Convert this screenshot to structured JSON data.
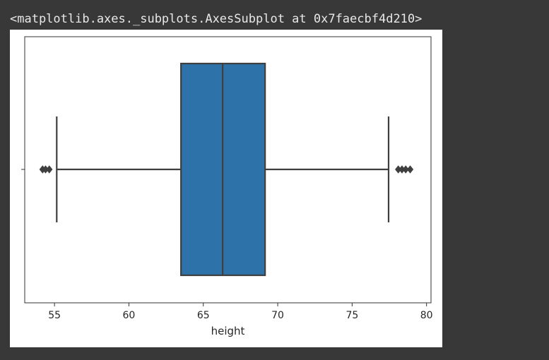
{
  "output": {
    "repr_text": "<matplotlib.axes._subplots.AxesSubplot at 0x7faecbf4d210>"
  },
  "colors": {
    "page_background": "#383838",
    "figure_background": "#ffffff",
    "box_fill": "#2d72a8",
    "line": "#3f3f3f"
  },
  "chart_data": {
    "type": "boxplot",
    "orientation": "horizontal",
    "title": "",
    "xlabel": "height",
    "ylabel": "",
    "xlim": [
      53,
      80.3
    ],
    "xticks": [
      55,
      60,
      65,
      70,
      75,
      80
    ],
    "xtick_labels": [
      "55",
      "60",
      "65",
      "70",
      "75",
      "80"
    ],
    "grid": false,
    "legend": "none",
    "box": {
      "whisker_low": 55.15,
      "q1": 63.5,
      "median": 66.3,
      "q3": 69.15,
      "whisker_high": 77.45
    },
    "outliers": [
      54.2,
      54.4,
      54.65,
      78.1,
      78.35,
      78.6,
      78.9
    ]
  }
}
